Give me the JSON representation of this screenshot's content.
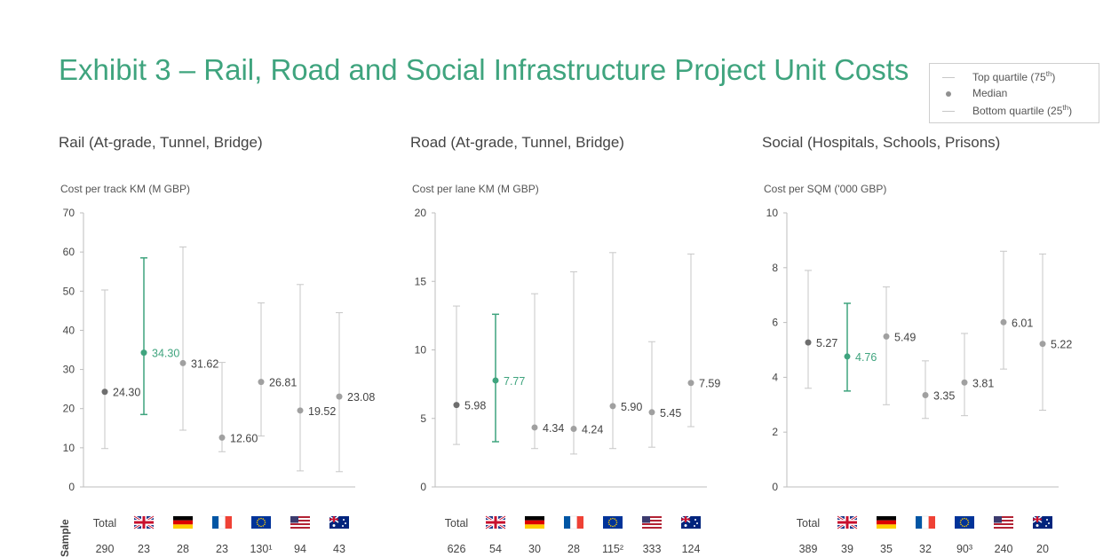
{
  "title": "Exhibit 3 – Rail, Road and Social Infrastructure Project Unit Costs",
  "legend": {
    "items": [
      {
        "symbol": "line",
        "label": "Top quartile (75",
        "sup": "th",
        "close": ")"
      },
      {
        "symbol": "dot",
        "label": "Median",
        "sup": "",
        "close": ""
      },
      {
        "symbol": "line",
        "label": "Bottom quartile (25",
        "sup": "th",
        "close": ")"
      }
    ]
  },
  "colors": {
    "highlight": "#3fa47e",
    "median_dark": "#6e6e6e",
    "median": "#a0a0a0",
    "whisker": "#c7c7c7",
    "axis": "#bdbdbd"
  },
  "sample_label": "Sample",
  "chart_data": [
    {
      "type": "box",
      "title": "Rail (At-grade, Tunnel, Bridge)",
      "ylabel": "Cost per track KM (M GBP)",
      "ylim": [
        0,
        70
      ],
      "yticks": [
        0,
        10,
        20,
        30,
        40,
        50,
        60,
        70
      ],
      "categories": [
        "Total",
        "UK",
        "Germany",
        "France",
        "EU",
        "USA",
        "Australia"
      ],
      "top": [
        50.3,
        58.5,
        61.3,
        31.8,
        47.0,
        51.7,
        44.5
      ],
      "median": [
        24.3,
        34.3,
        31.62,
        12.6,
        26.81,
        19.52,
        23.08
      ],
      "median_labels": [
        "24.30",
        "34.30",
        "31.62",
        "12.60",
        "26.81",
        "19.52",
        "23.08"
      ],
      "bottom": [
        9.8,
        18.5,
        14.5,
        9.0,
        13.0,
        4.1,
        3.9
      ],
      "samples": [
        "290",
        "23",
        "28",
        "23",
        "130¹",
        "94",
        "43"
      ]
    },
    {
      "type": "box",
      "title": "Road (At-grade, Tunnel, Bridge)",
      "ylabel": "Cost per lane KM (M GBP)",
      "ylim": [
        0,
        20
      ],
      "yticks": [
        0,
        5,
        10,
        15,
        20
      ],
      "categories": [
        "Total",
        "UK",
        "Germany",
        "France",
        "EU",
        "USA",
        "Australia"
      ],
      "top": [
        13.2,
        12.6,
        14.1,
        15.7,
        17.1,
        10.6,
        17.0
      ],
      "median": [
        5.98,
        7.77,
        4.34,
        4.24,
        5.9,
        5.45,
        7.59
      ],
      "median_labels": [
        "5.98",
        "7.77",
        "4.34",
        "4.24",
        "5.90",
        "5.45",
        "7.59"
      ],
      "bottom": [
        3.1,
        3.3,
        2.8,
        2.4,
        2.8,
        2.9,
        4.4
      ],
      "samples": [
        "626",
        "54",
        "30",
        "28",
        "115²",
        "333",
        "124"
      ]
    },
    {
      "type": "box",
      "title": "Social (Hospitals, Schools, Prisons)",
      "ylabel": "Cost per SQM ('000 GBP)",
      "ylim": [
        0,
        10
      ],
      "yticks": [
        0,
        2,
        4,
        6,
        8,
        10
      ],
      "categories": [
        "Total",
        "UK",
        "Germany",
        "France",
        "EU",
        "USA",
        "Australia"
      ],
      "top": [
        7.9,
        6.7,
        7.3,
        4.6,
        5.6,
        8.6,
        8.5
      ],
      "median": [
        5.27,
        4.76,
        5.49,
        3.35,
        3.81,
        6.01,
        5.22
      ],
      "median_labels": [
        "5.27",
        "4.76",
        "5.49",
        "3.35",
        "3.81",
        "6.01",
        "5.22"
      ],
      "bottom": [
        3.6,
        3.5,
        3.0,
        2.5,
        2.6,
        4.3,
        2.8
      ],
      "samples": [
        "389",
        "39",
        "35",
        "32",
        "90³",
        "240",
        "20"
      ]
    }
  ]
}
